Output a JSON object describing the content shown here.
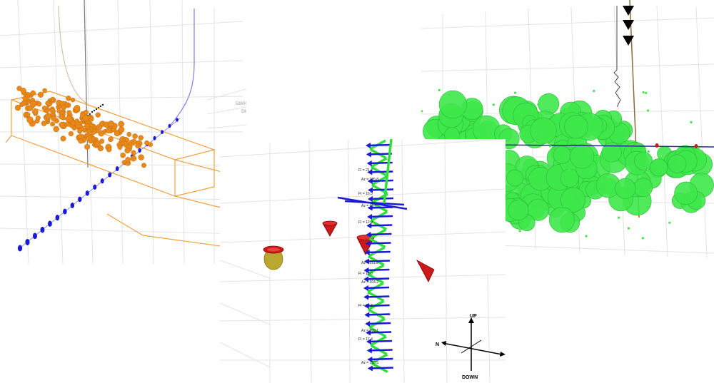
{
  "left_panel": {
    "coordinate_labels": [
      "586000",
      "587000",
      "587200"
    ]
  },
  "middle_panel": {
    "well_labels": [
      "FI = 21.4",
      "Az = 205.8",
      "FI = 16.5",
      "Az = 46.7",
      "FI = 12.9",
      "Az = 211.5",
      "FI = 13.6",
      "Az = 204.2",
      "FI = 12.4",
      "Az = 203.1",
      "FI = 17.4",
      "Az = 210.5"
    ],
    "compass": {
      "up": "UP",
      "down": "DOWN",
      "north": "N"
    }
  },
  "right_panel": {},
  "colors": {
    "event_orange": "#e8891a",
    "marker_blue": "#1b1bd6",
    "cloud_green": "#3ee84a",
    "cone_red": "#cc1a1a",
    "bbox_orange": "#f0a040"
  }
}
